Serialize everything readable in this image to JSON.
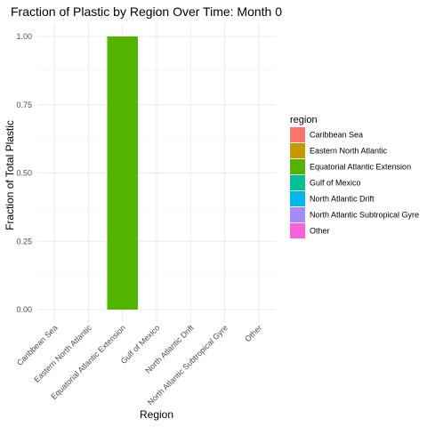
{
  "chart_data": {
    "type": "bar",
    "title": "Fraction of Plastic by Region Over Time: Month 0",
    "xlabel": "Region",
    "ylabel": "Fraction of Total Plastic",
    "ylim": [
      0,
      1.0
    ],
    "yticks": [
      "0.00",
      "0.25",
      "0.50",
      "0.75",
      "1.00"
    ],
    "ytick_values": [
      0,
      0.25,
      0.5,
      0.75,
      1.0
    ],
    "grid": true,
    "legend_placement": "right",
    "legend_title": "region",
    "categories": [
      "Caribbean Sea",
      "Eastern North Atlantic",
      "Equatorial Atlantic Extension",
      "Gulf of Mexico",
      "North Atlantic Drift",
      "North Atlantic Subtropical Gyre",
      "Other"
    ],
    "values": [
      0,
      0,
      1.0,
      0,
      0,
      0,
      0
    ],
    "colors": [
      "#F8766D",
      "#C49A00",
      "#53B400",
      "#00C094",
      "#00B6EB",
      "#A58AFF",
      "#FB61D7"
    ]
  }
}
